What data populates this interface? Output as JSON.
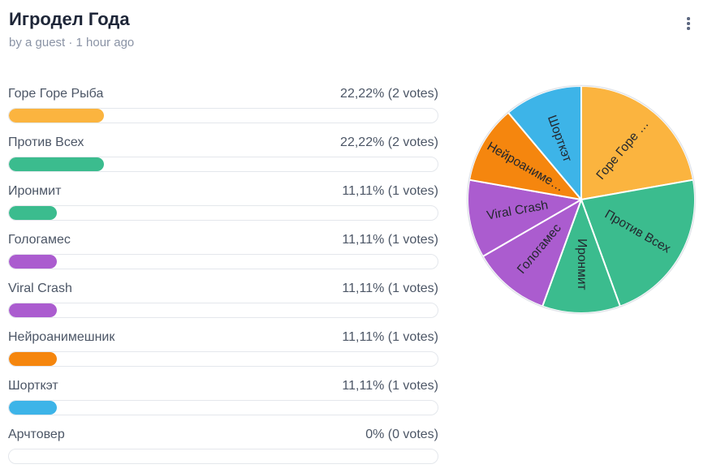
{
  "header": {
    "title": "Игродел Года",
    "byline": "by a guest · 1 hour ago"
  },
  "options": [
    {
      "label": "Горе Горе Рыба",
      "value_text": "22,22% (2 votes)",
      "percent": 22.22,
      "color": "#fbb43f"
    },
    {
      "label": "Против Всех",
      "value_text": "22,22% (2 votes)",
      "percent": 22.22,
      "color": "#3bbc8e"
    },
    {
      "label": "Иронмит",
      "value_text": "11,11% (1 votes)",
      "percent": 11.11,
      "color": "#3bbc8e"
    },
    {
      "label": "Гологамес",
      "value_text": "11,11% (1 votes)",
      "percent": 11.11,
      "color": "#ab5ccf"
    },
    {
      "label": "Viral Crash",
      "value_text": "11,11% (1 votes)",
      "percent": 11.11,
      "color": "#ab5ccf"
    },
    {
      "label": "Нейроанимешник",
      "value_text": "11,11% (1 votes)",
      "percent": 11.11,
      "color": "#f5860e"
    },
    {
      "label": "Шорткэт",
      "value_text": "11,11% (1 votes)",
      "percent": 11.11,
      "color": "#3db4e8"
    },
    {
      "label": "Арчтовер",
      "value_text": "0% (0 votes)",
      "percent": 0,
      "color": null
    }
  ],
  "chart_data": {
    "type": "pie",
    "title": "Игродел Года",
    "start_angle_deg": 0,
    "direction": "clockwise",
    "legend_position": "none",
    "slices": [
      {
        "label": "Горе Горе …",
        "full_label": "Горе Горе Рыба",
        "percent": 22.22,
        "votes": 2,
        "color": "#fbb43f"
      },
      {
        "label": "Против Всех",
        "full_label": "Против Всех",
        "percent": 22.22,
        "votes": 2,
        "color": "#3bbc8e"
      },
      {
        "label": "Иронмит",
        "full_label": "Иронмит",
        "percent": 11.11,
        "votes": 1,
        "color": "#3bbc8e"
      },
      {
        "label": "Гологамес",
        "full_label": "Гологамес",
        "percent": 11.11,
        "votes": 1,
        "color": "#ab5ccf"
      },
      {
        "label": "Viral Crash",
        "full_label": "Viral Crash",
        "percent": 11.11,
        "votes": 1,
        "color": "#ab5ccf"
      },
      {
        "label": "Нейроаниме…",
        "full_label": "Нейроанимешник",
        "percent": 11.11,
        "votes": 1,
        "color": "#f5860e"
      },
      {
        "label": "Шорткэт",
        "full_label": "Шорткэт",
        "percent": 11.11,
        "votes": 1,
        "color": "#3db4e8"
      }
    ]
  }
}
